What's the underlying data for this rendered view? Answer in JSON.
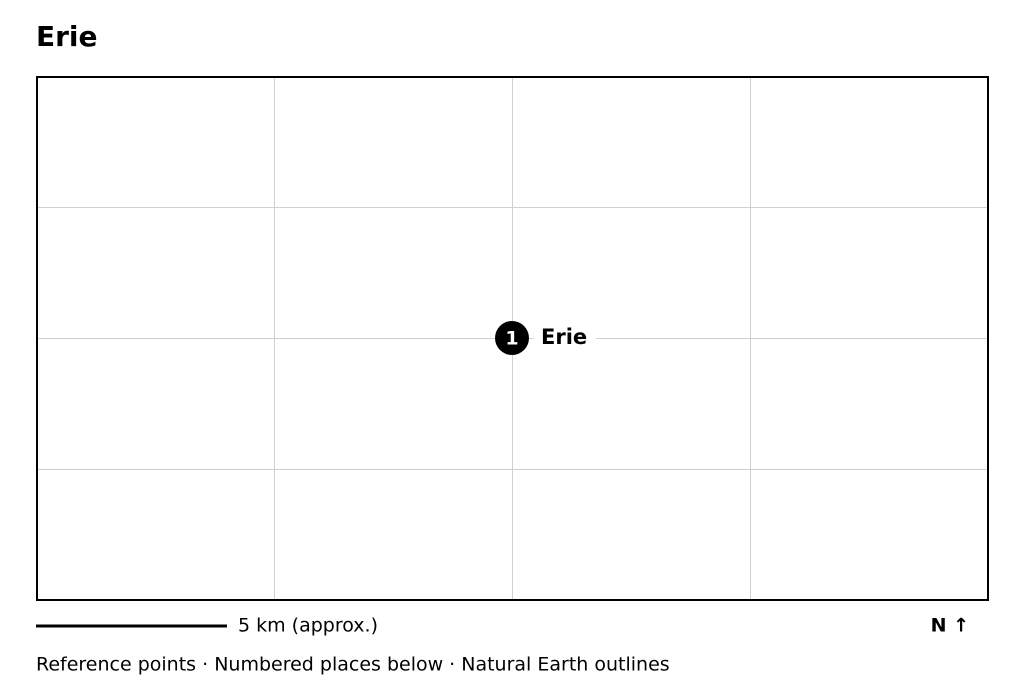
{
  "title": "Erie",
  "markers": [
    {
      "number": "1",
      "label": "Erie"
    }
  ],
  "scale_bar": "5 km (approx.)",
  "north": "N ↑",
  "footer": "Reference points · Numbered places below · Natural Earth outlines"
}
